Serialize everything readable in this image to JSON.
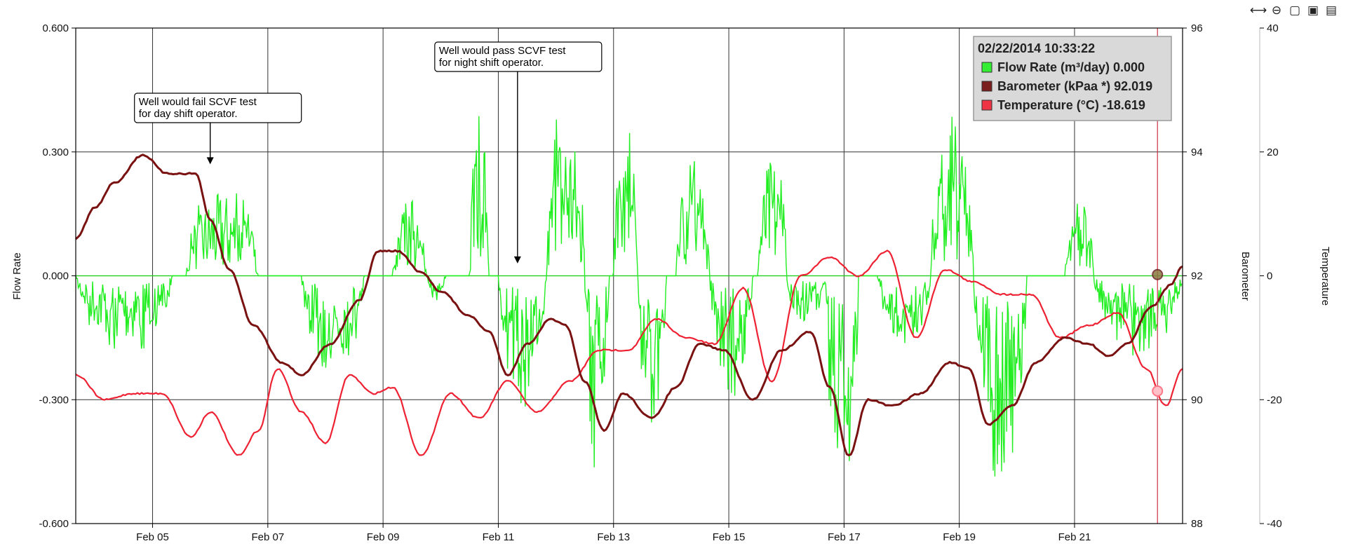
{
  "chart_data": {
    "type": "line",
    "title": "",
    "x_range": [
      "2014-02-03T16:00",
      "2014-02-22T21:00"
    ],
    "x_ticks": [
      "Feb 05",
      "Feb 07",
      "Feb 09",
      "Feb 11",
      "Feb 13",
      "Feb 15",
      "Feb 17",
      "Feb 19",
      "Feb 21"
    ],
    "y_axes": {
      "flow": {
        "label": "Flow Rate",
        "range": [
          -0.6,
          0.6
        ],
        "ticks": [
          "-0.600",
          "-0.300",
          "0.000",
          "0.300",
          "0.600"
        ]
      },
      "barometer": {
        "label": "Barometer",
        "range": [
          88,
          96
        ],
        "ticks": [
          "88",
          "90",
          "92",
          "94",
          "96"
        ]
      },
      "temperature": {
        "label": "Temperature",
        "range": [
          -40,
          40
        ],
        "ticks": [
          "-40",
          "-20",
          "0",
          "20",
          "40"
        ]
      }
    },
    "grid": true,
    "legend_placement": "top-right",
    "cursor_x": "2014-02-22T10:33",
    "legend": {
      "title": "02/22/2014 10:33:22",
      "entries": [
        {
          "text": "Flow Rate (m³/day) 0.000",
          "color": "#33ee33"
        },
        {
          "text": "Barometer (kPaa *) 92.019",
          "color": "#7a1e1e"
        },
        {
          "text": "Temperature (°C) -18.619",
          "color": "#ee3344"
        }
      ]
    },
    "annotations": [
      {
        "lines": [
          "Well would fail SCVF test",
          "for day shift operator."
        ],
        "x": "2014-02-06T00:00",
        "y": 0.27
      },
      {
        "lines": [
          "Well would pass SCVF test",
          "for night shift operator."
        ],
        "x": "2014-02-11T08:00",
        "y": 0.03
      }
    ],
    "series": [
      {
        "name": "Barometer",
        "axis": "barometer",
        "color": "#7a1212",
        "points": [
          [
            "2014-02-03T16:00",
            92.6
          ],
          [
            "2014-02-04T00:00",
            93.1
          ],
          [
            "2014-02-04T08:00",
            93.5
          ],
          [
            "2014-02-04T20:00",
            93.95
          ],
          [
            "2014-02-05T06:00",
            93.65
          ],
          [
            "2014-02-05T18:00",
            93.65
          ],
          [
            "2014-02-06T00:00",
            92.9
          ],
          [
            "2014-02-06T08:00",
            92.1
          ],
          [
            "2014-02-06T18:00",
            91.2
          ],
          [
            "2014-02-07T06:00",
            90.6
          ],
          [
            "2014-02-07T14:00",
            90.4
          ],
          [
            "2014-02-08T02:00",
            90.9
          ],
          [
            "2014-02-08T14:00",
            91.6
          ],
          [
            "2014-02-08T22:00",
            92.4
          ],
          [
            "2014-02-09T06:00",
            92.4
          ],
          [
            "2014-02-09T16:00",
            92.05
          ],
          [
            "2014-02-10T00:00",
            91.75
          ],
          [
            "2014-02-10T12:00",
            91.35
          ],
          [
            "2014-02-10T20:00",
            91.1
          ],
          [
            "2014-02-11T04:00",
            90.4
          ],
          [
            "2014-02-11T12:00",
            90.9
          ],
          [
            "2014-02-11T22:00",
            91.3
          ],
          [
            "2014-02-12T04:00",
            91.2
          ],
          [
            "2014-02-12T12:00",
            90.3
          ],
          [
            "2014-02-12T20:00",
            89.5
          ],
          [
            "2014-02-13T04:00",
            90.1
          ],
          [
            "2014-02-13T16:00",
            89.7
          ],
          [
            "2014-02-14T02:00",
            90.2
          ],
          [
            "2014-02-14T12:00",
            90.9
          ],
          [
            "2014-02-14T22:00",
            90.8
          ],
          [
            "2014-02-15T10:00",
            90.0
          ],
          [
            "2014-02-15T22:00",
            90.8
          ],
          [
            "2014-02-16T10:00",
            91.1
          ],
          [
            "2014-02-16T18:00",
            90.2
          ],
          [
            "2014-02-17T02:00",
            89.1
          ],
          [
            "2014-02-17T10:00",
            90.0
          ],
          [
            "2014-02-17T20:00",
            89.9
          ],
          [
            "2014-02-18T08:00",
            90.1
          ],
          [
            "2014-02-18T20:00",
            90.6
          ],
          [
            "2014-02-19T04:00",
            90.5
          ],
          [
            "2014-02-19T12:00",
            89.6
          ],
          [
            "2014-02-19T22:00",
            89.9
          ],
          [
            "2014-02-20T08:00",
            90.6
          ],
          [
            "2014-02-20T20:00",
            91.0
          ],
          [
            "2014-02-21T06:00",
            90.9
          ],
          [
            "2014-02-21T14:00",
            90.7
          ],
          [
            "2014-02-21T22:00",
            90.9
          ],
          [
            "2014-02-22T08:00",
            91.5
          ],
          [
            "2014-02-22T16:00",
            91.85
          ],
          [
            "2014-02-22T21:00",
            92.15
          ]
        ]
      },
      {
        "name": "Temperature",
        "axis": "temperature",
        "color": "#ee2233",
        "points": [
          [
            "2014-02-03T16:00",
            -16
          ],
          [
            "2014-02-04T04:00",
            -20
          ],
          [
            "2014-02-04T16:00",
            -19
          ],
          [
            "2014-02-05T04:00",
            -19
          ],
          [
            "2014-02-05T16:00",
            -26
          ],
          [
            "2014-02-06T00:00",
            -22
          ],
          [
            "2014-02-06T12:00",
            -29
          ],
          [
            "2014-02-06T20:00",
            -25
          ],
          [
            "2014-02-07T04:00",
            -15
          ],
          [
            "2014-02-07T14:00",
            -22
          ],
          [
            "2014-02-08T00:00",
            -27
          ],
          [
            "2014-02-08T10:00",
            -16
          ],
          [
            "2014-02-08T20:00",
            -19
          ],
          [
            "2014-02-09T04:00",
            -18
          ],
          [
            "2014-02-09T16:00",
            -29
          ],
          [
            "2014-02-10T04:00",
            -19
          ],
          [
            "2014-02-10T16:00",
            -23
          ],
          [
            "2014-02-11T04:00",
            -17
          ],
          [
            "2014-02-11T16:00",
            -22
          ],
          [
            "2014-02-12T06:00",
            -17
          ],
          [
            "2014-02-12T18:00",
            -12
          ],
          [
            "2014-02-13T06:00",
            -12
          ],
          [
            "2014-02-13T18:00",
            -7
          ],
          [
            "2014-02-14T06:00",
            -10
          ],
          [
            "2014-02-14T18:00",
            -11
          ],
          [
            "2014-02-15T06:00",
            -2
          ],
          [
            "2014-02-15T18:00",
            -17
          ],
          [
            "2014-02-16T06:00",
            0
          ],
          [
            "2014-02-16T18:00",
            3
          ],
          [
            "2014-02-17T06:00",
            0
          ],
          [
            "2014-02-17T18:00",
            4
          ],
          [
            "2014-02-18T06:00",
            -10
          ],
          [
            "2014-02-18T18:00",
            1
          ],
          [
            "2014-02-19T06:00",
            -1
          ],
          [
            "2014-02-19T18:00",
            -3
          ],
          [
            "2014-02-20T06:00",
            -3
          ],
          [
            "2014-02-20T18:00",
            -10
          ],
          [
            "2014-02-21T06:00",
            -8
          ],
          [
            "2014-02-21T18:00",
            -6
          ],
          [
            "2014-02-22T06:00",
            -15
          ],
          [
            "2014-02-22T14:00",
            -21
          ],
          [
            "2014-02-22T21:00",
            -15
          ]
        ]
      },
      {
        "name": "Flow Rate",
        "axis": "flow",
        "color": "#22ee22",
        "style": "spiky",
        "episodes": [
          {
            "start": "2014-02-03T16:00",
            "end": "2014-02-05T08:00",
            "sign": -1,
            "amp": 0.2
          },
          {
            "start": "2014-02-05T14:00",
            "end": "2014-02-06T20:00",
            "sign": 1,
            "amp": 0.25
          },
          {
            "start": "2014-02-07T14:00",
            "end": "2014-02-08T16:00",
            "sign": -1,
            "amp": 0.26
          },
          {
            "start": "2014-02-09T04:00",
            "end": "2014-02-09T18:00",
            "sign": 1,
            "amp": 0.19
          },
          {
            "start": "2014-02-09T18:00",
            "end": "2014-02-10T02:00",
            "sign": -1,
            "amp": 0.06
          },
          {
            "start": "2014-02-10T12:00",
            "end": "2014-02-10T20:00",
            "sign": 1,
            "amp": 0.42
          },
          {
            "start": "2014-02-11T00:00",
            "end": "2014-02-11T20:00",
            "sign": -1,
            "amp": 0.32
          },
          {
            "start": "2014-02-11T20:00",
            "end": "2014-02-12T12:00",
            "sign": 1,
            "amp": 0.48
          },
          {
            "start": "2014-02-12T12:00",
            "end": "2014-02-12T22:00",
            "sign": -1,
            "amp": 0.49
          },
          {
            "start": "2014-02-13T00:00",
            "end": "2014-02-13T10:00",
            "sign": 1,
            "amp": 0.39
          },
          {
            "start": "2014-02-13T10:00",
            "end": "2014-02-13T22:00",
            "sign": -1,
            "amp": 0.38
          },
          {
            "start": "2014-02-14T02:00",
            "end": "2014-02-14T16:00",
            "sign": 1,
            "amp": 0.28
          },
          {
            "start": "2014-02-14T16:00",
            "end": "2014-02-15T10:00",
            "sign": -1,
            "amp": 0.3
          },
          {
            "start": "2014-02-15T12:00",
            "end": "2014-02-16T00:00",
            "sign": 1,
            "amp": 0.36
          },
          {
            "start": "2014-02-16T00:00",
            "end": "2014-02-16T16:00",
            "sign": -1,
            "amp": 0.12
          },
          {
            "start": "2014-02-16T16:00",
            "end": "2014-02-17T06:00",
            "sign": -1,
            "amp": 0.58
          },
          {
            "start": "2014-02-17T14:00",
            "end": "2014-02-18T12:00",
            "sign": -1,
            "amp": 0.18
          },
          {
            "start": "2014-02-18T12:00",
            "end": "2014-02-19T06:00",
            "sign": 1,
            "amp": 0.39
          },
          {
            "start": "2014-02-19T06:00",
            "end": "2014-02-20T04:00",
            "sign": -1,
            "amp": 0.52
          },
          {
            "start": "2014-02-20T20:00",
            "end": "2014-02-21T08:00",
            "sign": 1,
            "amp": 0.19
          },
          {
            "start": "2014-02-21T08:00",
            "end": "2014-02-22T21:00",
            "sign": -1,
            "amp": 0.2
          }
        ]
      }
    ]
  },
  "toolbar": {
    "icons": [
      "pan-icon",
      "zoom-out-icon",
      "note-icon",
      "excel-export-icon",
      "pdf-export-icon"
    ],
    "glyphs": [
      "⟷",
      "⊖",
      "▢",
      "▣",
      "▤"
    ]
  }
}
